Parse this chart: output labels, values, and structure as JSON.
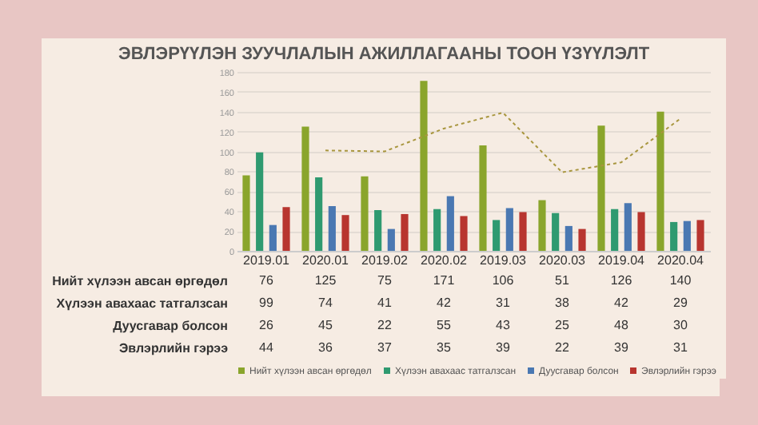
{
  "chart_data": {
    "type": "bar",
    "title": "ЭВЛЭРҮҮЛЭН ЗУУЧЛАЛЫН АЖИЛЛАГААНЫ ТООН ҮЗҮҮЛЭЛТ",
    "categories": [
      "2019.01",
      "2020.01",
      "2019.02",
      "2020.02",
      "2019.03",
      "2020.03",
      "2019.04",
      "2020.04"
    ],
    "series": [
      {
        "name": "Нийт хүлээн авсан өргөдөл",
        "color": "#8aa52c",
        "values": [
          76,
          125,
          75,
          171,
          106,
          51,
          126,
          140
        ],
        "value_labels": [
          "76",
          "125",
          "75",
          "171",
          "106",
          "51",
          "126",
          "140"
        ]
      },
      {
        "name": "Хүлээн авахаас татгалзсан",
        "color": "#2f9a70",
        "values": [
          99,
          74,
          41,
          42,
          31,
          38,
          42,
          29
        ],
        "value_labels": [
          "99",
          "74",
          "41",
          "42",
          "31",
          "38",
          "42",
          "29"
        ]
      },
      {
        "name": "Дуусгавар болсон",
        "color": "#4a78b2",
        "values": [
          26,
          45,
          22,
          55,
          43,
          25,
          48,
          30
        ],
        "value_labels": [
          "26",
          "45",
          "22",
          "55",
          "43",
          "25",
          "48",
          "30"
        ]
      },
      {
        "name": "Эвлэрлийн гэрээ",
        "color": "#b8352f",
        "values": [
          44,
          36,
          37,
          35,
          39,
          22,
          39,
          31
        ],
        "value_labels": [
          "44",
          "36",
          "37",
          "35",
          "39",
          "22",
          "39",
          "31"
        ]
      },
      {
        "type": "line",
        "color": "#a8963e",
        "line_style": "dotted",
        "values": [
          null,
          101,
          100,
          123,
          139,
          79,
          89,
          133
        ]
      }
    ],
    "ylim": [
      0,
      180
    ],
    "yticks": [
      0,
      20,
      40,
      60,
      80,
      100,
      120,
      140,
      160,
      180
    ],
    "grid": "y",
    "legend": "bottom"
  }
}
